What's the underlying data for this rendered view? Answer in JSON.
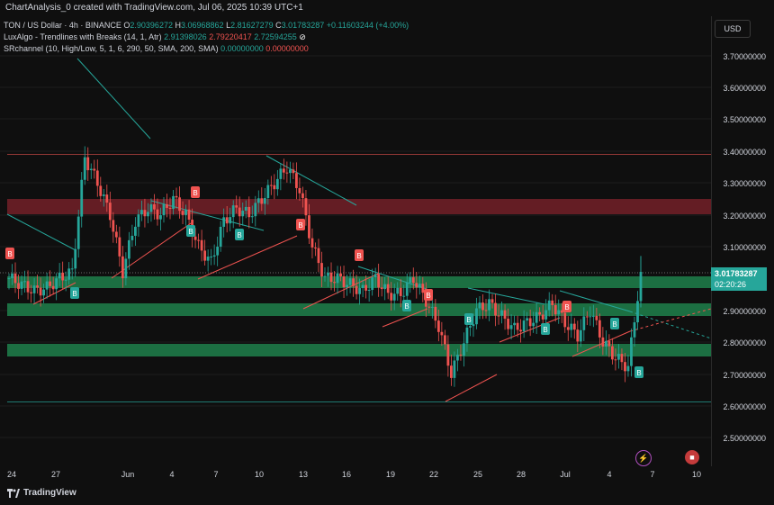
{
  "header": {
    "created_text": "ChartAnalysis_0 created with TradingView.com, Jul 06, 2025 10:39 UTC+1"
  },
  "legend": {
    "symbol": "TON / US Dollar · 4h · BINANCE",
    "o_label": "O",
    "o_val": "2.90396272",
    "h_label": "H",
    "h_val": "3.06968862",
    "l_label": "L",
    "l_val": "2.81627279",
    "c_label": "C",
    "c_val": "3.01783287",
    "change": "+0.11603244 (+4.00%)",
    "lux_label": "LuxAlgo - Trendlines with Breaks (14, 1, Atr)",
    "lux_v1": "2.91398026",
    "lux_v2": "2.79220417",
    "lux_v3": "2.72594255",
    "sr_label": "SRchannel (10, High/Low, 5, 1, 6, 290, 50, SMA, 200, SMA)",
    "sr_v1": "0.00000000",
    "sr_v2": "0.00000000"
  },
  "price_axis": {
    "currency": "USD",
    "labels": [
      "3.70000000",
      "3.60000000",
      "3.50000000",
      "3.40000000",
      "3.30000000",
      "3.20000000",
      "3.10000000",
      "2.90000000",
      "2.80000000",
      "2.70000000",
      "2.60000000",
      "2.50000000"
    ],
    "last_price": "3.01783287",
    "countdown": "02:20:26"
  },
  "time_axis": {
    "labels": [
      "24",
      "27",
      "Jun",
      "4",
      "7",
      "10",
      "13",
      "16",
      "19",
      "22",
      "25",
      "28",
      "Jul",
      "4",
      "7",
      "10"
    ]
  },
  "footer": {
    "brand": "TradingView"
  },
  "markers": {
    "buy": "B",
    "sell": "B"
  },
  "colors": {
    "up": "#26a69a",
    "down": "#ef5350",
    "bg": "#0f0f0f",
    "support": "#1e7a48",
    "resistance": "#6e1f27"
  },
  "chart_data": {
    "type": "candlestick",
    "title": "TON / US Dollar · 4h · BINANCE",
    "ylim": [
      2.45,
      3.78
    ],
    "x_range": [
      "May 23",
      "Jul 10"
    ],
    "last_close": 3.01783287,
    "closes_approx": [
      3.0,
      2.98,
      2.96,
      2.97,
      3.0,
      3.02,
      3.38,
      3.3,
      3.2,
      3.02,
      3.18,
      3.22,
      3.2,
      3.25,
      3.2,
      3.1,
      3.05,
      3.18,
      3.22,
      3.2,
      3.25,
      3.3,
      3.35,
      3.28,
      3.1,
      3.0,
      3.0,
      2.98,
      2.96,
      3.0,
      2.95,
      2.95,
      3.0,
      2.93,
      2.85,
      2.7,
      2.8,
      2.9,
      2.92,
      2.88,
      2.84,
      2.86,
      2.88,
      2.92,
      2.86,
      2.82,
      2.9,
      2.8,
      2.75,
      2.72,
      3.02
    ],
    "zones": [
      {
        "type": "resistance",
        "from": 3.2,
        "to": 3.25
      },
      {
        "type": "support",
        "from": 3.0,
        "to": 3.03
      },
      {
        "type": "support",
        "from": 2.89,
        "to": 2.92
      },
      {
        "type": "support",
        "from": 2.76,
        "to": 2.79
      }
    ]
  }
}
